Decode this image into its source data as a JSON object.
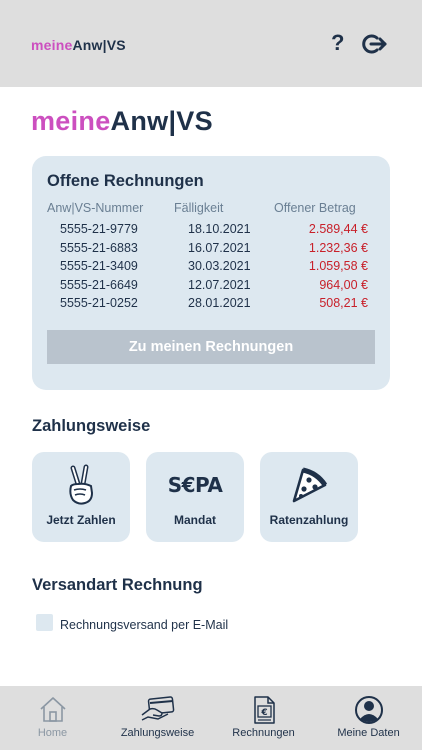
{
  "header": {
    "logo_part1": "meine",
    "logo_part2": "Anw|VS",
    "help_label": "?",
    "logout_icon": "logout-icon"
  },
  "brand": {
    "logo_part1": "meine",
    "logo_part2": "Anw|VS"
  },
  "invoices": {
    "title": "Offene Rechnungen",
    "columns": [
      "Anw|VS-Nummer",
      "Fälligkeit",
      "Offener Betrag"
    ],
    "rows": [
      {
        "number": "5555-21-9779",
        "due": "18.10.2021",
        "amount": "2.589,44 €"
      },
      {
        "number": "5555-21-6883",
        "due": "16.07.2021",
        "amount": "1.232,36 €"
      },
      {
        "number": "5555-21-3409",
        "due": "30.03.2021",
        "amount": "1.059,58 €"
      },
      {
        "number": "5555-21-6649",
        "due": "12.07.2021",
        "amount": "964,00 €"
      },
      {
        "number": "5555-21-0252",
        "due": "28.01.2021",
        "amount": "508,21 €"
      }
    ],
    "button_label": "Zu meinen Rechnungen"
  },
  "payment": {
    "title": "Zahlungsweise",
    "options": [
      {
        "label": "Jetzt Zahlen",
        "icon": "victory-hand-icon"
      },
      {
        "label": "Mandat",
        "icon": "sepa-logo-icon",
        "icon_text": "S€PA"
      },
      {
        "label": "Ratenzahlung",
        "icon": "pizza-slice-icon"
      }
    ]
  },
  "shipping": {
    "title": "Versandart Rechnung",
    "checkbox_label": "Rechnungsversand per E-Mail",
    "checked": false
  },
  "tabs": [
    {
      "label": "Home",
      "icon": "home-icon",
      "active": false
    },
    {
      "label": "Zahlungsweise",
      "icon": "card-payment-icon",
      "active": true
    },
    {
      "label": "Rechnungen",
      "icon": "invoice-document-icon",
      "active": true
    },
    {
      "label": "Meine Daten",
      "icon": "user-avatar-icon",
      "active": true
    }
  ],
  "colors": {
    "accent_pink": "#cc4fbf",
    "navy": "#1f3149",
    "card_bg": "#dde8f0",
    "amount_red": "#c8202a",
    "bar_gray": "#dedede"
  }
}
